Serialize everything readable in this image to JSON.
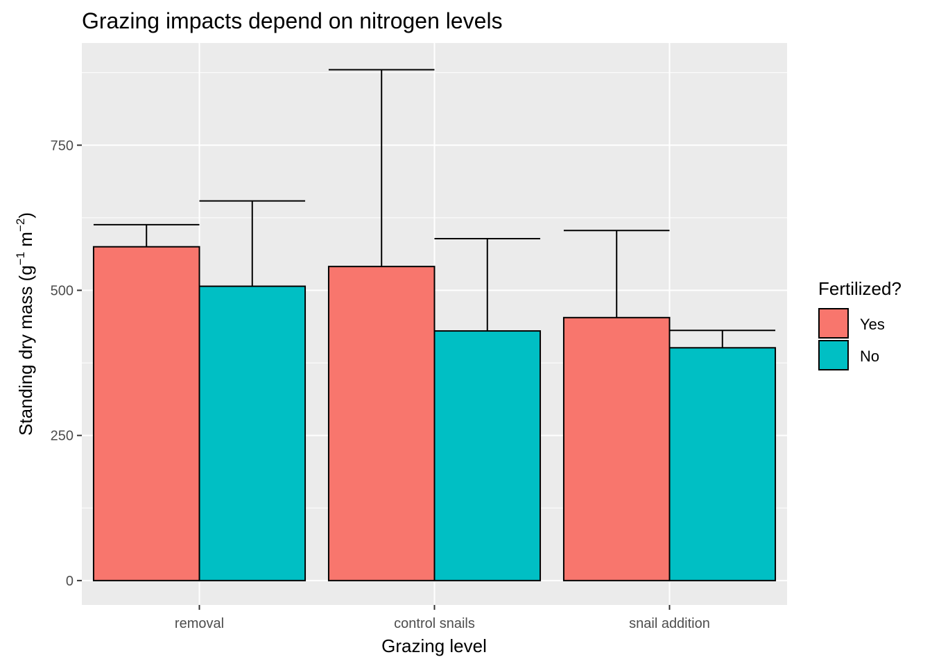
{
  "chart_data": {
    "type": "bar",
    "title": "Grazing impacts depend on nitrogen levels",
    "xlabel": "Grazing level",
    "ylabel": "Standing dry mass (g",
    "ylabel_sup1": "−1",
    "ylabel_mid": " m",
    "ylabel_sup2": "−2",
    "ylabel_end": ")",
    "categories": [
      "removal",
      "control snails",
      "snail addition"
    ],
    "series": [
      {
        "name": "Yes",
        "color": "#F8766D",
        "values": [
          575,
          541,
          453
        ],
        "error_upper": [
          613,
          880,
          603
        ]
      },
      {
        "name": "No",
        "color": "#00BFC4",
        "values": [
          507,
          430,
          401
        ],
        "error_upper": [
          654,
          589,
          431
        ]
      }
    ],
    "ylim": [
      -42,
      926
    ],
    "yticks": [
      0,
      250,
      500,
      750
    ],
    "ytick_labels": [
      "0",
      "250",
      "500",
      "750"
    ],
    "legend": {
      "title": "Fertilized?",
      "position": "right",
      "entries": [
        "Yes",
        "No"
      ]
    },
    "grid": true,
    "panel_background": "#EBEBEB"
  }
}
